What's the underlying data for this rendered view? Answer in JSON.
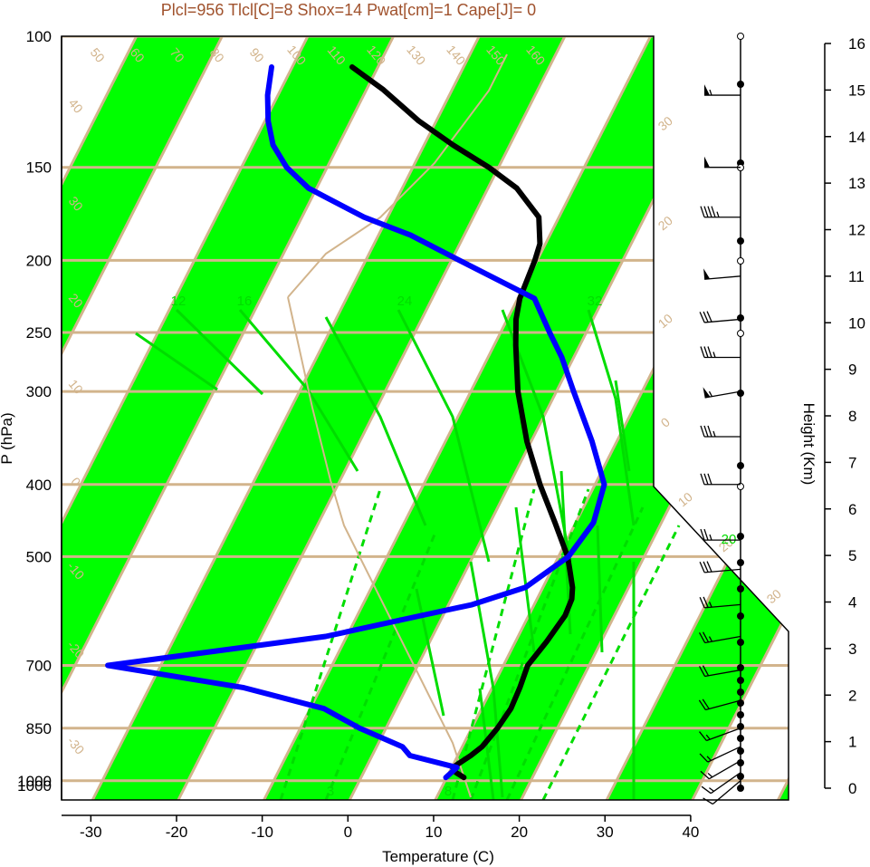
{
  "summary_text": "Plcl=956 Tlcl[C]=8 Shox=14 Pwat[cm]=1 Cape[J]= 0",
  "colors": {
    "band_green": "#00ff00",
    "tan": "#d2b48c",
    "temperature": "#000000",
    "dewpoint": "#0000ff",
    "mixing_ratio": "#00dd00",
    "summary": "#a0522d"
  },
  "chart_data": {
    "type": "line",
    "title": "",
    "xlabel": "Temperature (C)",
    "ylabel": "P (hPa)",
    "y2label": "Height (Km)",
    "xlim": [
      -35,
      40
    ],
    "ylim_hpa": [
      1050,
      100
    ],
    "log_pressure_axis": true,
    "x_ticks": [
      "-30",
      "-20",
      "-10",
      "0",
      "10",
      "20",
      "30",
      "40"
    ],
    "pressure_ticks": [
      "100",
      "150",
      "200",
      "250",
      "300",
      "400",
      "500",
      "700",
      "850",
      "1000"
    ],
    "height_ticks": [
      "0",
      "1",
      "2",
      "3",
      "4",
      "5",
      "6",
      "7",
      "8",
      "9",
      "10",
      "11",
      "12",
      "13",
      "14",
      "15",
      "16"
    ],
    "isotherm_labels": [
      "50",
      "60",
      "70",
      "80",
      "90",
      "100",
      "110",
      "120",
      "130",
      "140",
      "150",
      "160",
      "40",
      "30",
      "20",
      "10",
      "0",
      "-10",
      "-20",
      "-30"
    ],
    "mixing_ratio_labels": [
      "12",
      "16",
      "24",
      "32",
      "3",
      "8",
      "20"
    ],
    "right_edge_labels": [
      "30",
      "20",
      "10",
      "0",
      "10",
      "20",
      "30"
    ],
    "series": [
      {
        "p": [
          990,
          975,
          960,
          925,
          900,
          850,
          800,
          750,
          700,
          650,
          600,
          570,
          550,
          520,
          500,
          450,
          400,
          350,
          300,
          260,
          240,
          225,
          210,
          200,
          190,
          175,
          160,
          150,
          140,
          130,
          118,
          110
        ],
        "t": [
          12.2,
          11.0,
          10.3,
          11.7,
          12.5,
          13.2,
          13.6,
          13.4,
          13.0,
          13.8,
          14.4,
          14.2,
          13.6,
          12.2,
          11.2,
          7.7,
          3.7,
          -0.4,
          -4.4,
          -7.4,
          -8.9,
          -9.7,
          -10.0,
          -10.2,
          -10.6,
          -12.3,
          -16.6,
          -21.1,
          -26.6,
          -32.0,
          -38.0,
          -43.0
        ]
      },
      {
        "p": [
          990,
          960,
          925,
          900,
          850,
          800,
          750,
          700,
          640,
          600,
          580,
          550,
          500,
          450,
          400,
          350,
          300,
          270,
          250,
          225,
          200,
          185,
          175,
          165,
          160,
          150,
          140,
          130,
          120,
          110
        ],
        "t": [
          10.1,
          10.8,
          4.6,
          3.2,
          -2.9,
          -8.2,
          -18.8,
          -36.0,
          -12.3,
          -2.4,
          2.9,
          8.1,
          11.3,
          12.2,
          11.2,
          7.2,
          2.1,
          -1.3,
          -4.2,
          -8.0,
          -19.0,
          -26.2,
          -32.7,
          -38.1,
          -40.9,
          -44.7,
          -47.6,
          -49.6,
          -51.2,
          -52.4
        ]
      }
    ],
    "wind_barbs": [
      {
        "p": 120,
        "dir": 270,
        "spd": 55
      },
      {
        "p": 150,
        "dir": 270,
        "spd": 50
      },
      {
        "p": 175,
        "dir": 270,
        "spd": 45
      },
      {
        "p": 210,
        "dir": 265,
        "spd": 50
      },
      {
        "p": 240,
        "dir": 265,
        "spd": 30
      },
      {
        "p": 270,
        "dir": 270,
        "spd": 35
      },
      {
        "p": 300,
        "dir": 260,
        "spd": 55
      },
      {
        "p": 345,
        "dir": 270,
        "spd": 35
      },
      {
        "p": 400,
        "dir": 270,
        "spd": 30
      },
      {
        "p": 475,
        "dir": 270,
        "spd": 25
      },
      {
        "p": 520,
        "dir": 265,
        "spd": 30
      },
      {
        "p": 580,
        "dir": 265,
        "spd": 25
      },
      {
        "p": 640,
        "dir": 260,
        "spd": 25
      },
      {
        "p": 710,
        "dir": 260,
        "spd": 20
      },
      {
        "p": 780,
        "dir": 255,
        "spd": 20
      },
      {
        "p": 850,
        "dir": 250,
        "spd": 15
      },
      {
        "p": 900,
        "dir": 245,
        "spd": 15
      },
      {
        "p": 940,
        "dir": 240,
        "spd": 15
      },
      {
        "p": 975,
        "dir": 235,
        "spd": 15
      },
      {
        "p": 1000,
        "dir": 230,
        "spd": 10
      }
    ]
  }
}
